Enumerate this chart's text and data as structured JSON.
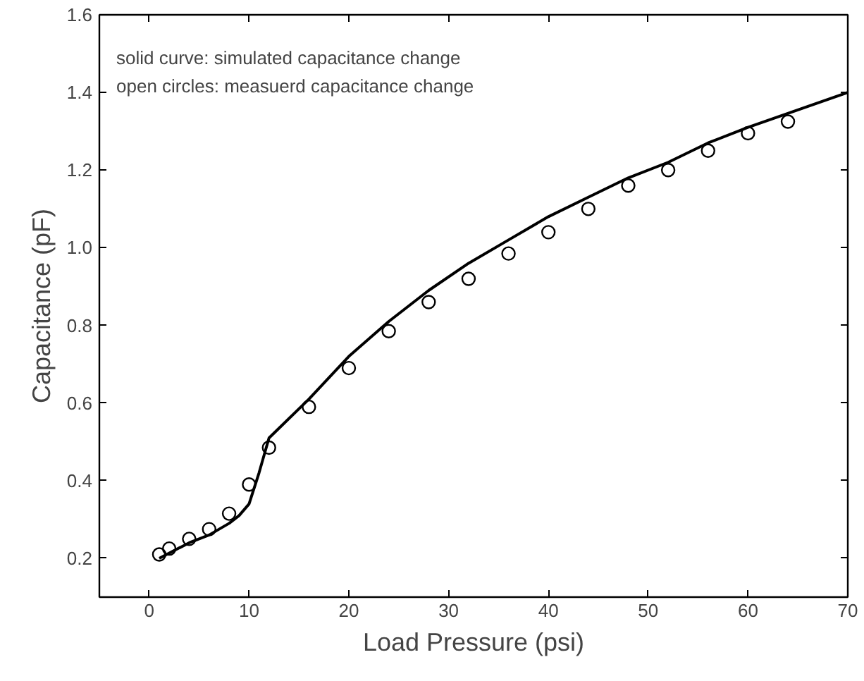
{
  "chart_data": {
    "type": "line",
    "xlabel": "Load Pressure (psi)",
    "ylabel": "Capacitance (pF)",
    "xlim": [
      -5,
      70
    ],
    "xticks": [
      0,
      10,
      20,
      30,
      40,
      50,
      60,
      70
    ],
    "ylim": [
      0.1,
      1.6
    ],
    "yticks": [
      0.2,
      0.4,
      0.6,
      0.8,
      {
        "value": 1.0,
        "label": "1.0"
      },
      1.2,
      1.4,
      1.6
    ],
    "grid": false,
    "annotations": [
      "solid curve: simulated capacitance change",
      "open circles: measuerd capacitance change"
    ],
    "series": [
      {
        "color": "#000000",
        "line_style": "solid",
        "marker": "none",
        "x": [
          1,
          4,
          6,
          8,
          9,
          10,
          11,
          12,
          16,
          20,
          24,
          28,
          32,
          36,
          40,
          44,
          48,
          52,
          56,
          60,
          65,
          70
        ],
        "values": [
          0.2,
          0.24,
          0.26,
          0.29,
          0.31,
          0.34,
          0.42,
          0.51,
          0.61,
          0.72,
          0.81,
          0.89,
          0.96,
          1.02,
          1.08,
          1.13,
          1.18,
          1.22,
          1.27,
          1.31,
          1.355,
          1.4
        ]
      },
      {
        "type": "scatter",
        "color": "#000000",
        "marker": "circle",
        "x": [
          1,
          2,
          4,
          6,
          8,
          10,
          12,
          16,
          20,
          24,
          28,
          32,
          36,
          40,
          44,
          48,
          52,
          56,
          60,
          64
        ],
        "values": [
          0.21,
          0.225,
          0.25,
          0.275,
          0.315,
          0.39,
          0.485,
          0.59,
          0.69,
          0.785,
          0.86,
          0.92,
          0.985,
          1.04,
          1.1,
          1.16,
          1.2,
          1.25,
          1.295,
          1.325
        ]
      }
    ]
  }
}
